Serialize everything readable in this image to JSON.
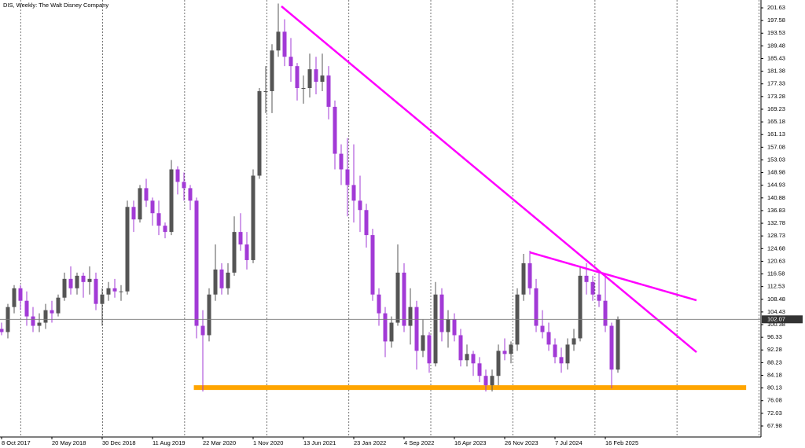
{
  "chart_data": {
    "type": "candlestick",
    "title": "DIS, Weekly:  The Walt Disney Company",
    "x": [
      "2017-10-08",
      "2017-11-05",
      "2017-12-03",
      "2017-12-31",
      "2018-01-28",
      "2018-02-25",
      "2018-03-25",
      "2018-04-22",
      "2018-05-20",
      "2018-06-17",
      "2018-07-15",
      "2018-08-12",
      "2018-09-09",
      "2018-10-07",
      "2018-11-04",
      "2018-12-02",
      "2018-12-30",
      "2019-01-27",
      "2019-02-24",
      "2019-03-24",
      "2019-04-21",
      "2019-05-19",
      "2019-06-16",
      "2019-07-14",
      "2019-08-11",
      "2019-09-08",
      "2019-10-06",
      "2019-11-03",
      "2019-12-01",
      "2019-12-29",
      "2020-01-26",
      "2020-02-23",
      "2020-03-22",
      "2020-04-19",
      "2020-05-17",
      "2020-06-14",
      "2020-07-12",
      "2020-08-09",
      "2020-09-06",
      "2020-10-04",
      "2020-11-01",
      "2020-11-29",
      "2020-12-27",
      "2021-01-24",
      "2021-02-21",
      "2021-03-21",
      "2021-04-18",
      "2021-05-16",
      "2021-06-13",
      "2021-07-11",
      "2021-08-08",
      "2021-09-05",
      "2021-10-03",
      "2021-10-31",
      "2021-11-28",
      "2021-12-26",
      "2022-01-23",
      "2022-02-20",
      "2022-03-20",
      "2022-04-17",
      "2022-05-15",
      "2022-06-12",
      "2022-07-10",
      "2022-08-07",
      "2022-09-04",
      "2022-10-02",
      "2022-10-30",
      "2022-11-27",
      "2022-12-25",
      "2023-01-22",
      "2023-02-19",
      "2023-03-19",
      "2023-04-16",
      "2023-05-14",
      "2023-06-11",
      "2023-07-09",
      "2023-08-06",
      "2023-09-03",
      "2023-10-01",
      "2023-10-29",
      "2023-11-26",
      "2023-12-24",
      "2024-01-21",
      "2024-02-18",
      "2024-03-17",
      "2024-04-14",
      "2024-05-12",
      "2024-06-09",
      "2024-07-07",
      "2024-08-04",
      "2024-09-01",
      "2024-09-29",
      "2024-10-27",
      "2024-11-24",
      "2024-12-22",
      "2025-01-19",
      "2025-02-16",
      "2025-03-16",
      "2025-04-13"
    ],
    "open": [
      99,
      98,
      106,
      112,
      108,
      103,
      100,
      101,
      105,
      104,
      109,
      115,
      112,
      116,
      114,
      115,
      107,
      110,
      112,
      111,
      111,
      138,
      134,
      144,
      140,
      136,
      132,
      130,
      150,
      146,
      144,
      140,
      100,
      97,
      110,
      118,
      112,
      117,
      130,
      126,
      121,
      148,
      175,
      175,
      188,
      194,
      186,
      183,
      176,
      176,
      182,
      178,
      180,
      170,
      155,
      150,
      145,
      140,
      137,
      129,
      110,
      104,
      95,
      101,
      117,
      100,
      106,
      92,
      97,
      88,
      110,
      98,
      102,
      97,
      89,
      91,
      88,
      84,
      81,
      84,
      92,
      91,
      94,
      110,
      120,
      112,
      100,
      98,
      94,
      90,
      88,
      94,
      96,
      116,
      114,
      110,
      108,
      100,
      86
    ],
    "high": [
      101,
      107,
      113,
      113,
      111,
      106,
      104,
      107,
      108,
      110,
      117,
      119,
      117,
      117,
      119,
      117,
      112,
      114,
      115,
      113,
      140,
      140,
      145,
      147,
      141,
      140,
      133,
      153,
      151,
      149,
      145,
      141,
      105,
      112,
      126,
      120,
      120,
      135,
      136,
      130,
      150,
      176,
      183,
      190,
      203,
      198,
      192,
      184,
      180,
      187,
      186,
      187,
      183,
      172,
      158,
      160,
      158,
      148,
      139,
      131,
      112,
      106,
      103,
      126,
      120,
      112,
      108,
      102,
      98,
      114,
      112,
      105,
      104,
      99,
      94,
      92,
      90,
      86,
      86,
      94,
      96,
      95,
      112,
      123,
      124,
      115,
      105,
      101,
      96,
      93,
      96,
      99,
      119,
      120,
      116,
      117,
      116,
      101,
      103
    ],
    "low": [
      97,
      96,
      104,
      105,
      100,
      98,
      98,
      99,
      101,
      103,
      108,
      110,
      110,
      109,
      110,
      105,
      100,
      108,
      109,
      108,
      110,
      130,
      133,
      138,
      132,
      129,
      128,
      129,
      142,
      140,
      137,
      96,
      79,
      95,
      108,
      110,
      110,
      116,
      124,
      118,
      120,
      147,
      168,
      168,
      186,
      183,
      178,
      172,
      171,
      173,
      174,
      175,
      166,
      150,
      145,
      135,
      133,
      130,
      125,
      108,
      100,
      90,
      93,
      100,
      98,
      94,
      86,
      90,
      85,
      87,
      95,
      93,
      95,
      87,
      87,
      84,
      82,
      79,
      79,
      81,
      89,
      88,
      92,
      108,
      110,
      98,
      96,
      92,
      88,
      85,
      86,
      92,
      95,
      110,
      108,
      106,
      98,
      80,
      85
    ],
    "close": [
      98,
      106,
      112,
      108,
      103,
      100,
      101,
      105,
      104,
      109,
      115,
      112,
      116,
      114,
      115,
      107,
      110,
      112,
      111,
      111,
      138,
      134,
      144,
      140,
      136,
      132,
      130,
      150,
      146,
      144,
      140,
      100,
      97,
      110,
      118,
      112,
      117,
      130,
      126,
      121,
      148,
      175,
      175,
      188,
      194,
      186,
      183,
      176,
      176,
      182,
      178,
      180,
      170,
      155,
      150,
      145,
      140,
      137,
      129,
      110,
      104,
      95,
      101,
      117,
      100,
      106,
      92,
      97,
      88,
      110,
      98,
      102,
      97,
      89,
      91,
      88,
      84,
      81,
      84,
      92,
      91,
      94,
      110,
      120,
      112,
      100,
      98,
      94,
      90,
      88,
      94,
      96,
      116,
      114,
      110,
      108,
      100,
      86,
      102.07
    ],
    "up_color": "#555555",
    "down_color": "#a23ad6",
    "xlim": [
      "2017-10-01",
      "2027-01-10"
    ],
    "xticks": [
      {
        "value": "2017-10-08",
        "label": "8 Oct 2017"
      },
      {
        "value": "2018-05-20",
        "label": "20 May 2018"
      },
      {
        "value": "2018-12-30",
        "label": "30 Dec 2018"
      },
      {
        "value": "2019-08-11",
        "label": "11 Aug 2019"
      },
      {
        "value": "2020-03-22",
        "label": "22 Mar 2020"
      },
      {
        "value": "2020-11-01",
        "label": "1 Nov 2020"
      },
      {
        "value": "2021-06-13",
        "label": "13 Jun 2021"
      },
      {
        "value": "2022-01-23",
        "label": "23 Jan 2022"
      },
      {
        "value": "2022-09-04",
        "label": "4 Sep 2022"
      },
      {
        "value": "2023-04-16",
        "label": "16 Apr 2023"
      },
      {
        "value": "2023-11-26",
        "label": "26 Nov 2023"
      },
      {
        "value": "2024-07-07",
        "label": "7 Jul 2024"
      },
      {
        "value": "2025-02-16",
        "label": "16 Feb 2025"
      }
    ],
    "ylim": [
      64.46,
      204.14
    ],
    "yticks": [
      201.63,
      197.58,
      193.53,
      189.48,
      185.43,
      181.38,
      177.33,
      173.28,
      169.23,
      165.18,
      161.13,
      157.08,
      153.03,
      148.98,
      144.93,
      140.88,
      136.83,
      132.78,
      128.73,
      124.68,
      120.63,
      116.58,
      112.53,
      108.48,
      104.43,
      100.38,
      96.33,
      92.28,
      88.23,
      84.18,
      80.13,
      76.08,
      72.03,
      67.98
    ],
    "trendlines": [
      {
        "x": [
          "2021-03-07",
          "2026-03-29"
        ],
        "y": [
          202.13,
          91.58
        ],
        "color": "#ff00ff"
      },
      {
        "x": [
          "2024-03-17",
          "2026-03-29"
        ],
        "y": [
          123.49,
          108.16
        ],
        "color": "#ff00ff"
      }
    ],
    "support": {
      "x": [
        "2020-02-11",
        "2026-11-05"
      ],
      "y": 80.27,
      "color": "#ffa500"
    }
  }
}
